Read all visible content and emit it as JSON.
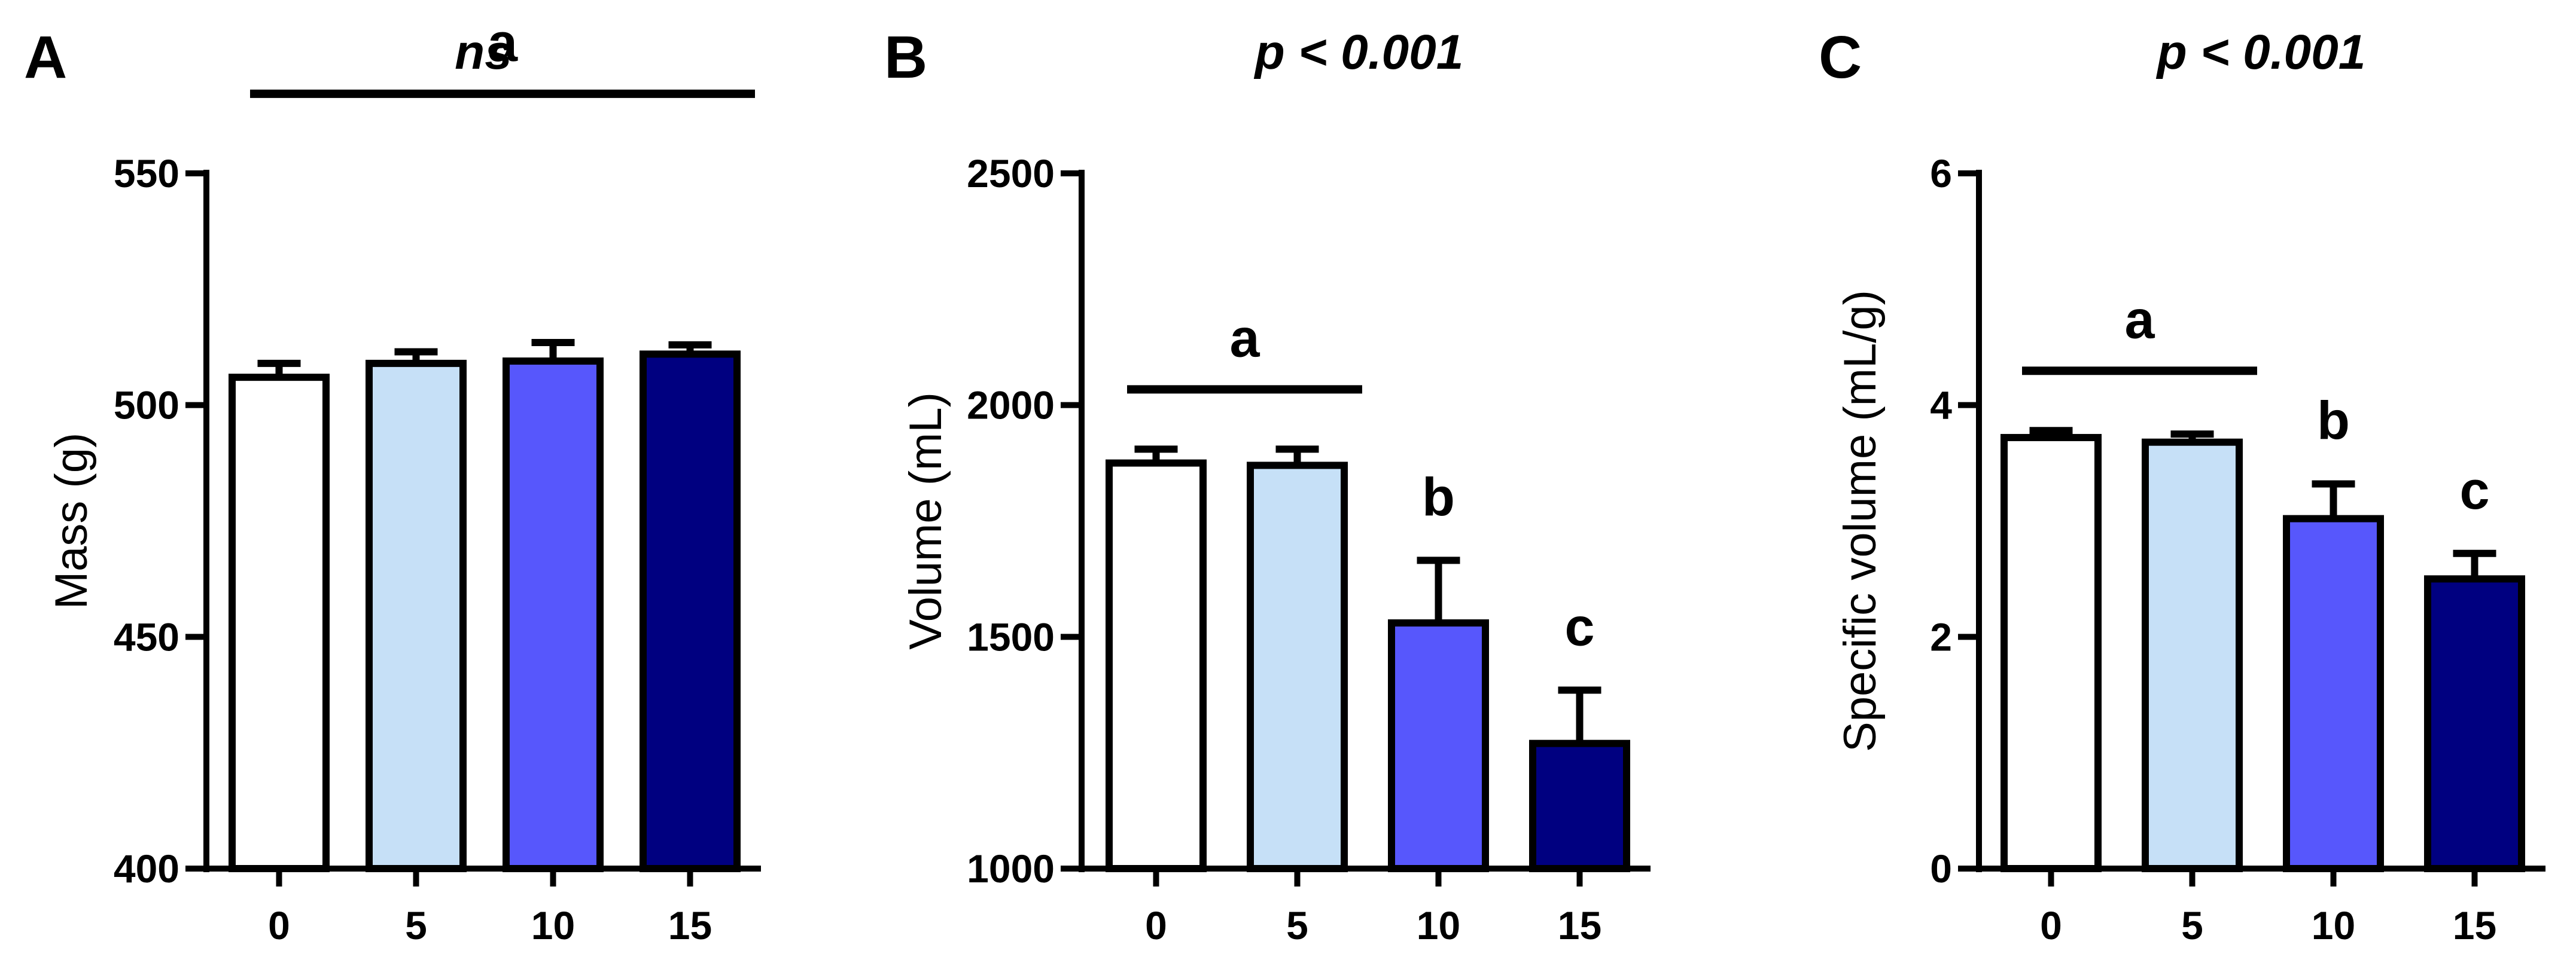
{
  "bar_colors": [
    "#ffffff",
    "#c6e0f7",
    "#5757fc",
    "#000080"
  ],
  "chart_data": [
    {
      "type": "bar",
      "panel": "A",
      "title": "ns",
      "xlabel": "",
      "ylabel": "Mass (g)",
      "categories": [
        "0",
        "5",
        "10",
        "15"
      ],
      "values": [
        506,
        509,
        509.5,
        511
      ],
      "errors": [
        3,
        2.5,
        4,
        2
      ],
      "ylim": [
        400,
        550
      ],
      "yticks": [
        "400",
        "450",
        "500",
        "550"
      ],
      "annotations": [
        {
          "label": "a",
          "groups": [
            0,
            3
          ],
          "bracket": true
        }
      ],
      "grid": false,
      "legend": "none"
    },
    {
      "type": "bar",
      "panel": "B",
      "title": "p < 0.001",
      "xlabel": "",
      "ylabel": "Volume (mL)",
      "categories": [
        "0",
        "5",
        "10",
        "15"
      ],
      "values": [
        1875,
        1870,
        1530,
        1270
      ],
      "errors": [
        30,
        35,
        135,
        115
      ],
      "ylim": [
        1000,
        2500
      ],
      "yticks": [
        "1000",
        "1500",
        "2000",
        "2500"
      ],
      "annotations": [
        {
          "label": "a",
          "groups": [
            0,
            1
          ],
          "bracket": true
        },
        {
          "label": "b",
          "groups": [
            2
          ],
          "bracket": false
        },
        {
          "label": "c",
          "groups": [
            3
          ],
          "bracket": false
        }
      ],
      "grid": false,
      "legend": "none"
    },
    {
      "type": "bar",
      "panel": "C",
      "title": "p < 0.001",
      "xlabel": "",
      "ylabel": "Specific volume (mL/g)",
      "categories": [
        "0",
        "5",
        "10",
        "15"
      ],
      "values": [
        3.72,
        3.68,
        3.02,
        2.5
      ],
      "errors": [
        0.06,
        0.07,
        0.3,
        0.22
      ],
      "ylim": [
        0,
        6
      ],
      "yticks": [
        "0",
        "2",
        "4",
        "6"
      ],
      "annotations": [
        {
          "label": "a",
          "groups": [
            0,
            1
          ],
          "bracket": true
        },
        {
          "label": "b",
          "groups": [
            2
          ],
          "bracket": false
        },
        {
          "label": "c",
          "groups": [
            3
          ],
          "bracket": false
        }
      ],
      "grid": false,
      "legend": "none"
    }
  ]
}
